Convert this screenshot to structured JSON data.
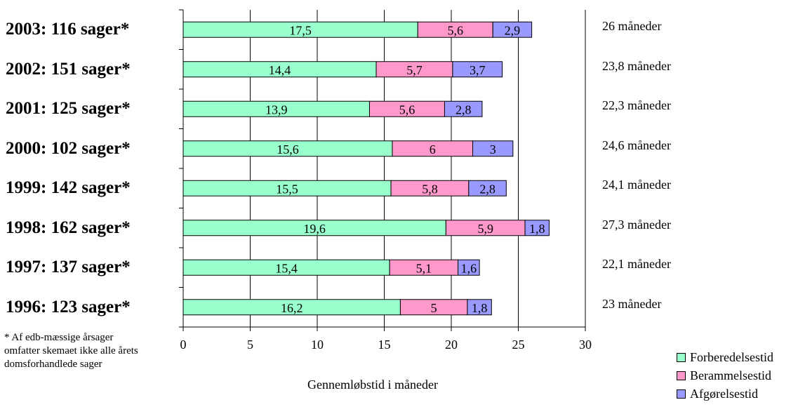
{
  "chart_data": {
    "type": "bar",
    "orientation": "horizontal",
    "stacked": true,
    "categories": [
      "2003: 116 sager*",
      "2002: 151 sager*",
      "2001: 125 sager*",
      "2000: 102 sager*",
      "1999: 142 sager*",
      "1998: 162 sager*",
      "1997: 137 sager*",
      "1996: 123 sager*"
    ],
    "series": [
      {
        "name": "Forberedelsestid",
        "color": "#99ffcc",
        "values": [
          17.5,
          14.4,
          13.9,
          15.6,
          15.5,
          19.6,
          15.4,
          16.2
        ],
        "labels": [
          "17,5",
          "14,4",
          "13,9",
          "15,6",
          "15,5",
          "19,6",
          "15,4",
          "16,2"
        ]
      },
      {
        "name": "Berammelsestid",
        "color": "#ff99cc",
        "values": [
          5.6,
          5.7,
          5.6,
          6,
          5.8,
          5.9,
          5.1,
          5
        ],
        "labels": [
          "5,6",
          "5,7",
          "5,6",
          "6",
          "5,8",
          "5,9",
          "5,1",
          "5"
        ]
      },
      {
        "name": "Afgørelsestid",
        "color": "#9999ff",
        "values": [
          2.9,
          3.7,
          2.8,
          3,
          2.8,
          1.8,
          1.6,
          1.8
        ],
        "labels": [
          "2,9",
          "3,7",
          "2,8",
          "3",
          "2,8",
          "1,8",
          "1,6",
          "1,8"
        ]
      }
    ],
    "totals": [
      "26 måneder",
      "23,8 måneder",
      "22,3 måneder",
      "24,6 måneder",
      "24,1 måneder",
      "27,3 måneder",
      "22,1 måneder",
      "23 måneder"
    ],
    "xlabel": "Gennemløbstid i måneder",
    "xlim": [
      0,
      30
    ],
    "xticks": [
      "0",
      "5",
      "10",
      "15",
      "20",
      "25",
      "30"
    ],
    "grid": true,
    "legend_position": "bottom-right",
    "footnote": [
      "* Af edb-mæssige årsager",
      "omfatter skemaet ikke alle årets",
      "domsforhandlede sager"
    ]
  }
}
